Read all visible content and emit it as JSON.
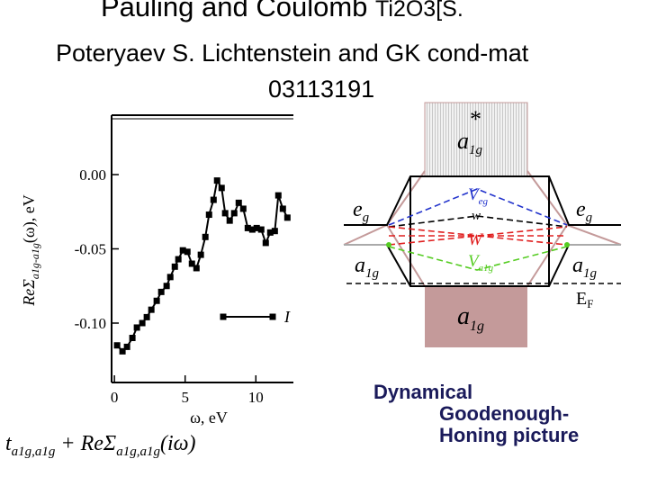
{
  "header": {
    "title_main": "Pauling  and Coulomb ",
    "title_formula": "Ti2O3[S.",
    "line2": "Poteryaev S. Lichtenstein and GK cond-mat",
    "line3": "03113191"
  },
  "chart_data": {
    "type": "line",
    "ylabel": [
      "ReΣ",
      "a1g-a1g",
      "(ω), eV"
    ],
    "xlabel": "ω, eV",
    "x": [
      0.19,
      0.57,
      0.89,
      1.27,
      1.59,
      1.97,
      2.29,
      2.61,
      2.99,
      3.31,
      3.69,
      3.95,
      4.27,
      4.52,
      4.84,
      5.16,
      5.48,
      5.8,
      6.11,
      6.43,
      6.69,
      7.01,
      7.26,
      7.58,
      7.83,
      8.15,
      8.47,
      8.79,
      9.11,
      9.43,
      9.75,
      10.06,
      10.38,
      10.7,
      11.02,
      11.34,
      11.59,
      11.91,
      12.23
    ],
    "series": [
      {
        "name": "I",
        "color": "#000000",
        "values": [
          -0.115,
          -0.119,
          -0.116,
          -0.11,
          -0.103,
          -0.1,
          -0.096,
          -0.091,
          -0.085,
          -0.079,
          -0.075,
          -0.069,
          -0.062,
          -0.057,
          -0.051,
          -0.052,
          -0.06,
          -0.063,
          -0.054,
          -0.042,
          -0.027,
          -0.017,
          -0.004,
          -0.009,
          -0.026,
          -0.031,
          -0.026,
          -0.019,
          -0.023,
          -0.036,
          -0.037,
          -0.036,
          -0.037,
          -0.046,
          -0.039,
          -0.038,
          -0.014,
          -0.023,
          -0.029
        ]
      }
    ],
    "xlim": [
      -0.2,
      12.4
    ],
    "ylim": [
      -0.14,
      0.04
    ],
    "xticks": [
      0,
      5,
      10
    ],
    "yticks": [
      {
        "value": 0,
        "label": "0.00"
      },
      {
        "value": -0.05,
        "label": "-0.05"
      },
      {
        "value": -0.1,
        "label": "-0.10"
      }
    ]
  },
  "diagram": {
    "a1g_star": {
      "base": "a",
      "sub": "1g",
      "sup": "*"
    },
    "eg_left": {
      "base": "e",
      "sub": "g"
    },
    "eg_right": {
      "base": "e",
      "sub": "g"
    },
    "v_eg": {
      "base": "V",
      "sub": "eg"
    },
    "w": "w",
    "W": "W",
    "v_a1g": {
      "base": "V",
      "sub": "a1g"
    },
    "a1g_left": {
      "base": "a",
      "sub": "1g"
    },
    "a1g_right": {
      "base": "a",
      "sub": "1g"
    },
    "ef": {
      "base": "E",
      "sub": "F"
    },
    "a1g_bottom": {
      "base": "a",
      "sub": "1g"
    }
  },
  "caption": [
    "Dynamical",
    "Goodenough-",
    "Honing picture"
  ],
  "formula": [
    "t",
    "a1g,a1g",
    " + ReΣ",
    "a1g,a1g",
    "(iω)"
  ]
}
